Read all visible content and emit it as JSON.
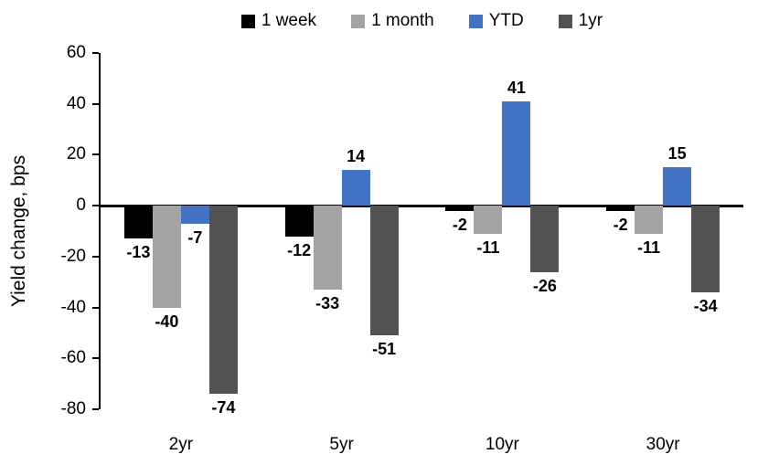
{
  "chart_data": {
    "type": "bar",
    "title": "",
    "xlabel": "",
    "ylabel": "Yield change, bps",
    "categories": [
      "2yr",
      "5yr",
      "10yr",
      "30yr"
    ],
    "series": [
      {
        "name": "1 week",
        "color": "#000000",
        "values": [
          -13,
          -12,
          -2,
          -2
        ]
      },
      {
        "name": "1 month",
        "color": "#A3A3A3",
        "values": [
          -40,
          -33,
          -11,
          -11
        ]
      },
      {
        "name": "YTD",
        "color": "#4472C4",
        "values": [
          -7,
          14,
          41,
          15
        ]
      },
      {
        "name": "1yr",
        "color": "#525252",
        "values": [
          -74,
          -51,
          -26,
          -34
        ]
      }
    ],
    "ylim": [
      -80,
      60
    ],
    "yticks": [
      60,
      40,
      20,
      0,
      -20,
      -40,
      -60,
      -80
    ],
    "grid": false,
    "legend_position": "top",
    "data_labels": true,
    "axis_color": "#000000",
    "background_color": "#FFFFFF"
  }
}
